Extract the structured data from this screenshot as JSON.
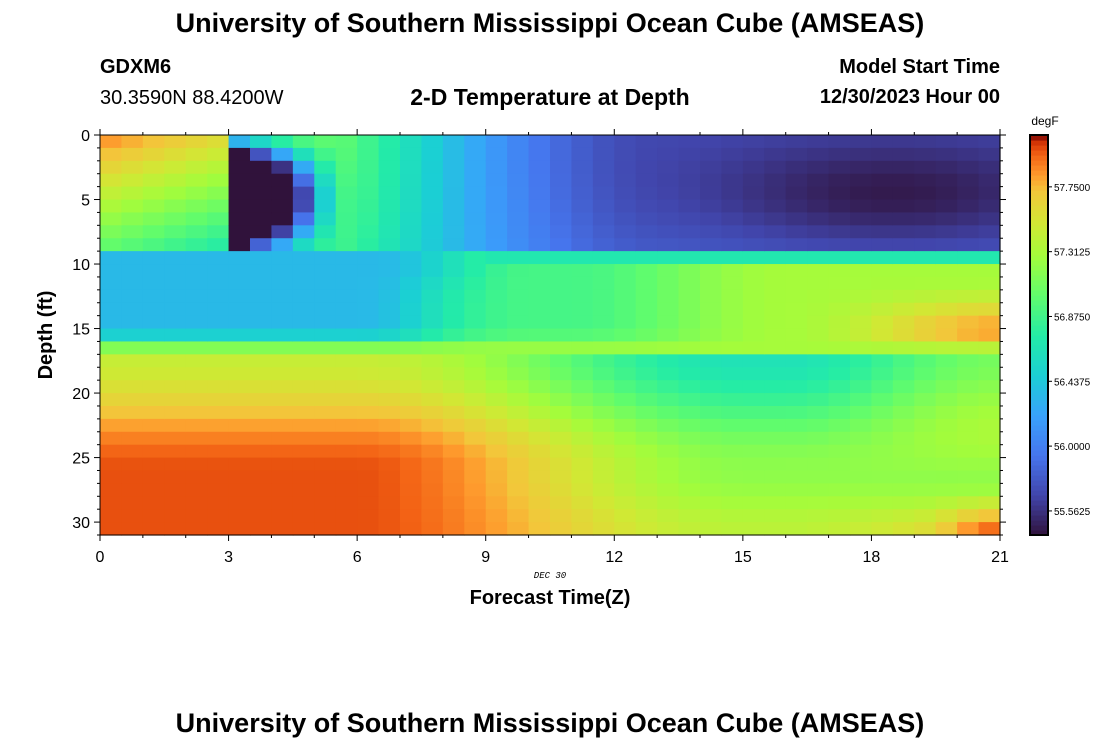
{
  "header": {
    "title": "University of Southern Mississippi Ocean Cube (AMSEAS)",
    "station_id": "GDXM6",
    "coordinates": "30.3590N  88.4200W",
    "subtitle": "2-D Temperature at Depth",
    "model_start_label": "Model Start Time",
    "model_start_value": "12/30/2023 Hour 00"
  },
  "footer": {
    "title": "University of Southern Mississippi Ocean Cube (AMSEAS)"
  },
  "colors": {
    "background": "#ffffff",
    "axis": "#000000"
  },
  "chart_data": {
    "type": "heatmap",
    "title": "2-D Temperature at Depth",
    "xlabel": "Forecast Time(Z)",
    "ylabel": "Depth (ft)",
    "date_annotation": "DEC 30",
    "xlim": [
      0,
      21
    ],
    "ylim": [
      0,
      31
    ],
    "xticks": [
      0,
      3,
      6,
      9,
      12,
      15,
      18,
      21
    ],
    "yticks": [
      0,
      5,
      10,
      15,
      20,
      25,
      30
    ],
    "colorbar": {
      "units": "degF",
      "min": 55.4,
      "max": 58.1,
      "ticks": [
        55.5625,
        56.0,
        56.4375,
        56.875,
        57.3125,
        57.75
      ],
      "tick_labels": [
        "55.5625",
        "56.0000",
        "56.4375",
        "56.8750",
        "57.3125",
        "57.7500"
      ]
    },
    "grid": {
      "time_step_hours": 0.5,
      "depth_step_ft": 1
    },
    "features": {
      "surface_layer": "warm at start (57.9 degF) cooling to 55.5 degF by hour 18 at 5 ft",
      "mid_layer": "cold band near 12-14 ft (56.3 degF) in first 7 hours, narrowing band near 10 ft",
      "bottom_layer": "warmest near 27-30 ft at start (58.0 degF), ~57.0-57.2 degF later, warming again near hour 20"
    }
  }
}
